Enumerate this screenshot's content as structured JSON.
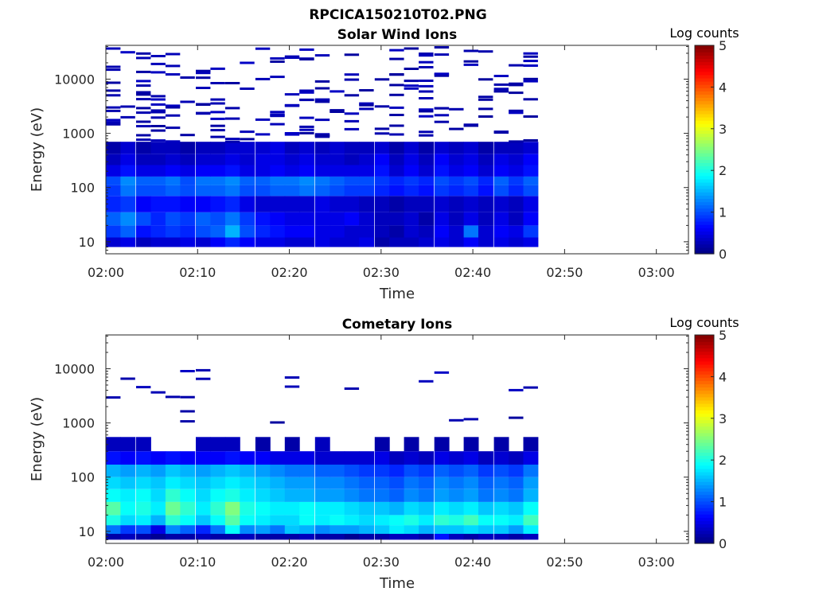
{
  "figure": {
    "title": "RPCICA150210T02.PNG"
  },
  "colors": {
    "axis": "#262626",
    "colormap": "jet"
  },
  "chart_data": [
    {
      "type": "heatmap",
      "title": "Solar Wind Ions",
      "xlabel": "Time",
      "ylabel": "Energy (eV)",
      "x_ticks": [
        "02:00",
        "02:10",
        "02:20",
        "02:30",
        "02:40",
        "02:50",
        "03:00"
      ],
      "x_tick_minutes": [
        0,
        10,
        20,
        30,
        40,
        50,
        60
      ],
      "xlim_minutes": [
        0,
        63.5
      ],
      "y_scale": "log",
      "ylim": [
        6,
        42000
      ],
      "y_ticks": [
        "10",
        "100",
        "1000",
        "10000"
      ],
      "y_tick_values": [
        10,
        100,
        1000,
        10000
      ],
      "colorbar": {
        "label": "Log counts",
        "range": [
          0,
          5
        ],
        "ticks": [
          "0",
          "1",
          "2",
          "3",
          "4",
          "5"
        ]
      },
      "time_columns_minutes": [
        0,
        1.6,
        3.3,
        4.9,
        6.5,
        8.1,
        9.8,
        11.4,
        13.0,
        14.6,
        16.3,
        17.9,
        19.5,
        21.1,
        22.8,
        24.4,
        26.0,
        27.6,
        29.3,
        30.9,
        32.5,
        34.1,
        35.8,
        37.4,
        39.0,
        40.6,
        42.3,
        43.9,
        45.5
      ],
      "energy_bands_eV": [
        {
          "low": 8,
          "high": 12,
          "log_counts": [
            0.4,
            0.5,
            0.3,
            0.4,
            0.4,
            0.5,
            0.4,
            0.6,
            0.8,
            0.6,
            0.5,
            0.5,
            0.4,
            0.4,
            0.5,
            0.4,
            0.4,
            0.5,
            0.2,
            0.3,
            0.3,
            0.4,
            0.5,
            0.4,
            0.6,
            0.4,
            0.5,
            0.4,
            0.5
          ]
        },
        {
          "low": 12,
          "high": 20,
          "log_counts": [
            0.9,
            1.1,
            0.7,
            0.8,
            0.9,
            0.8,
            1.0,
            1.1,
            1.5,
            1.0,
            0.8,
            0.7,
            0.6,
            0.6,
            0.5,
            0.5,
            0.4,
            0.4,
            0.3,
            0.2,
            0.4,
            0.3,
            0.6,
            0.4,
            1.2,
            0.4,
            0.6,
            0.5,
            0.9
          ]
        },
        {
          "low": 20,
          "high": 35,
          "log_counts": [
            1.1,
            1.3,
            1.0,
            0.8,
            1.0,
            0.9,
            1.1,
            1.0,
            1.2,
            0.9,
            0.7,
            0.6,
            0.5,
            0.5,
            0.5,
            0.5,
            0.6,
            0.4,
            0.3,
            0.3,
            0.4,
            0.2,
            0.5,
            0.3,
            0.5,
            0.3,
            0.5,
            0.3,
            0.6
          ]
        },
        {
          "low": 35,
          "high": 70,
          "log_counts": [
            0.8,
            0.9,
            0.6,
            0.7,
            0.7,
            0.6,
            0.6,
            0.7,
            0.8,
            0.5,
            0.4,
            0.4,
            0.4,
            0.4,
            0.5,
            0.4,
            0.4,
            0.3,
            0.3,
            0.2,
            0.3,
            0.3,
            0.4,
            0.3,
            0.4,
            0.3,
            0.4,
            0.3,
            0.5
          ]
        },
        {
          "low": 70,
          "high": 110,
          "log_counts": [
            0.9,
            1.2,
            1.0,
            1.0,
            1.1,
            1.0,
            1.1,
            1.1,
            1.2,
            1.0,
            1.0,
            1.1,
            1.1,
            1.2,
            1.1,
            1.0,
            0.9,
            0.9,
            0.8,
            0.7,
            0.8,
            0.7,
            0.9,
            0.8,
            0.9,
            0.7,
            1.0,
            0.8,
            1.0
          ]
        },
        {
          "low": 110,
          "high": 160,
          "log_counts": [
            1.0,
            1.3,
            1.1,
            1.1,
            1.2,
            1.0,
            1.2,
            1.2,
            1.3,
            1.1,
            1.1,
            1.2,
            1.2,
            1.3,
            1.2,
            1.1,
            1.0,
            1.0,
            0.9,
            0.8,
            0.9,
            0.8,
            1.0,
            0.9,
            1.0,
            0.8,
            1.1,
            0.9,
            1.1
          ]
        },
        {
          "low": 160,
          "high": 260,
          "log_counts": [
            0.5,
            0.7,
            0.5,
            0.5,
            0.6,
            0.5,
            0.6,
            0.6,
            0.7,
            0.5,
            0.5,
            0.6,
            0.5,
            0.6,
            0.5,
            0.5,
            0.5,
            0.5,
            0.7,
            0.4,
            0.6,
            0.4,
            0.7,
            0.5,
            0.6,
            0.4,
            0.6,
            0.5,
            0.7
          ]
        },
        {
          "low": 260,
          "high": 420,
          "log_counts": [
            0.3,
            0.5,
            0.3,
            0.3,
            0.4,
            0.3,
            0.4,
            0.4,
            0.5,
            0.4,
            0.5,
            0.5,
            0.4,
            0.5,
            0.4,
            0.4,
            0.3,
            0.4,
            0.6,
            0.3,
            0.5,
            0.3,
            0.6,
            0.4,
            0.5,
            0.3,
            0.5,
            0.4,
            0.6
          ]
        },
        {
          "low": 420,
          "high": 700,
          "log_counts": [
            0.2,
            0.4,
            0.2,
            0.3,
            0.3,
            0.2,
            0.3,
            0.3,
            0.4,
            0.4,
            0.4,
            0.5,
            0.3,
            0.4,
            0.3,
            0.4,
            0.3,
            0.3,
            0.4,
            0.2,
            0.4,
            0.2,
            0.4,
            0.3,
            0.4,
            0.2,
            0.3,
            0.3,
            0.4
          ]
        }
      ],
      "sparse_high_energy": "scattered single-count (~0.1 log counts) lines from about 700 eV up to about 40000 eV throughout 02:00–02:46"
    },
    {
      "type": "heatmap",
      "title": "Cometary Ions",
      "xlabel": "Time",
      "ylabel": "Energy (eV)",
      "x_ticks": [
        "02:00",
        "02:10",
        "02:20",
        "02:30",
        "02:40",
        "02:50",
        "03:00"
      ],
      "x_tick_minutes": [
        0,
        10,
        20,
        30,
        40,
        50,
        60
      ],
      "xlim_minutes": [
        0,
        63.5
      ],
      "y_scale": "log",
      "ylim": [
        6,
        42000
      ],
      "y_ticks": [
        "10",
        "100",
        "1000",
        "10000"
      ],
      "y_tick_values": [
        10,
        100,
        1000,
        10000
      ],
      "colorbar": {
        "label": "Log counts",
        "range": [
          0,
          5
        ],
        "ticks": [
          "0",
          "1",
          "2",
          "3",
          "4",
          "5"
        ]
      },
      "time_columns_minutes": [
        0,
        1.6,
        3.3,
        4.9,
        6.5,
        8.1,
        9.8,
        11.4,
        13.0,
        14.6,
        16.3,
        17.9,
        19.5,
        21.1,
        22.8,
        24.4,
        26.0,
        27.6,
        29.3,
        30.9,
        32.5,
        34.1,
        35.8,
        37.4,
        39.0,
        40.6,
        42.3,
        43.9,
        45.5
      ],
      "energy_bands_eV": [
        {
          "low": 7,
          "high": 9,
          "log_counts": [
            0.2,
            0.3,
            0.2,
            0.1,
            0.2,
            0.2,
            0.3,
            0.2,
            0.2,
            0.3,
            0.2,
            0.2,
            0.2,
            0.3,
            0.2,
            0.2,
            0.1,
            0.2,
            0.2,
            0.3,
            0.3,
            0.2,
            0.7,
            0.3,
            0.2,
            0.3,
            0.3,
            0.2,
            0.3
          ]
        },
        {
          "low": 9,
          "high": 13,
          "log_counts": [
            1.2,
            0.9,
            1.0,
            0.5,
            1.3,
            1.1,
            0.8,
            1.2,
            1.9,
            1.3,
            1.4,
            1.2,
            1.6,
            1.5,
            1.3,
            1.4,
            1.4,
            1.5,
            1.6,
            1.8,
            1.7,
            1.5,
            1.6,
            1.6,
            1.7,
            1.6,
            1.6,
            1.4,
            1.8
          ]
        },
        {
          "low": 13,
          "high": 20,
          "log_counts": [
            2.0,
            1.7,
            1.8,
            1.5,
            2.1,
            1.9,
            1.6,
            1.9,
            2.3,
            1.9,
            1.8,
            1.7,
            1.7,
            1.9,
            1.8,
            1.9,
            1.8,
            1.7,
            1.8,
            1.9,
            2.0,
            1.8,
            2.1,
            2.0,
            2.2,
            1.9,
            1.9,
            1.8,
            2.2
          ]
        },
        {
          "low": 20,
          "high": 35,
          "log_counts": [
            2.3,
            1.9,
            2.0,
            1.8,
            2.4,
            2.1,
            1.8,
            2.1,
            2.5,
            2.0,
            1.9,
            1.8,
            1.8,
            1.9,
            1.8,
            1.8,
            1.7,
            1.6,
            1.6,
            1.5,
            1.7,
            1.6,
            1.8,
            1.7,
            1.8,
            1.6,
            1.7,
            1.6,
            1.9
          ]
        },
        {
          "low": 35,
          "high": 60,
          "log_counts": [
            1.9,
            1.8,
            1.9,
            1.7,
            2.1,
            1.9,
            1.7,
            1.9,
            2.0,
            1.8,
            1.7,
            1.6,
            1.5,
            1.5,
            1.4,
            1.4,
            1.3,
            1.2,
            1.2,
            1.1,
            1.3,
            1.2,
            1.4,
            1.3,
            1.4,
            1.2,
            1.3,
            1.2,
            1.5
          ]
        },
        {
          "low": 60,
          "high": 100,
          "log_counts": [
            1.7,
            1.6,
            1.7,
            1.6,
            1.8,
            1.7,
            1.6,
            1.7,
            1.8,
            1.7,
            1.6,
            1.5,
            1.4,
            1.4,
            1.3,
            1.3,
            1.2,
            1.1,
            1.1,
            1.0,
            1.2,
            1.1,
            1.3,
            1.2,
            1.3,
            1.1,
            1.2,
            1.1,
            1.4
          ]
        },
        {
          "low": 100,
          "high": 170,
          "log_counts": [
            1.5,
            1.4,
            1.5,
            1.4,
            1.6,
            1.5,
            1.4,
            1.5,
            1.6,
            1.5,
            1.4,
            1.3,
            1.2,
            1.2,
            1.1,
            1.1,
            1.0,
            0.9,
            0.9,
            0.8,
            1.0,
            0.9,
            1.1,
            1.0,
            1.1,
            0.9,
            1.0,
            0.9,
            1.2
          ]
        },
        {
          "low": 170,
          "high": 300,
          "log_counts": [
            0.7,
            0.6,
            0.7,
            0.6,
            0.7,
            0.6,
            0.6,
            0.6,
            0.7,
            0.6,
            0.6,
            0.5,
            0.5,
            0.5,
            0.4,
            0.4,
            0.4,
            0.4,
            0.5,
            0.3,
            0.4,
            0.3,
            0.5,
            0.4,
            0.5,
            0.3,
            0.4,
            0.3,
            0.5
          ]
        },
        {
          "low": 300,
          "high": 550,
          "log_counts": [
            0.3,
            0.3,
            0.3,
            0.0,
            0.0,
            0.0,
            0.3,
            0.3,
            0.3,
            0.0,
            0.2,
            0.0,
            0.2,
            0.0,
            0.3,
            0.0,
            0.0,
            0.0,
            0.2,
            0.0,
            0.2,
            0.0,
            0.2,
            0.0,
            0.2,
            0.0,
            0.2,
            0.0,
            0.2
          ]
        }
      ],
      "sparse_high_energy": "isolated single-count lines near 1500, 3500, 4500, 5500, 11000 and 12000 eV"
    }
  ]
}
